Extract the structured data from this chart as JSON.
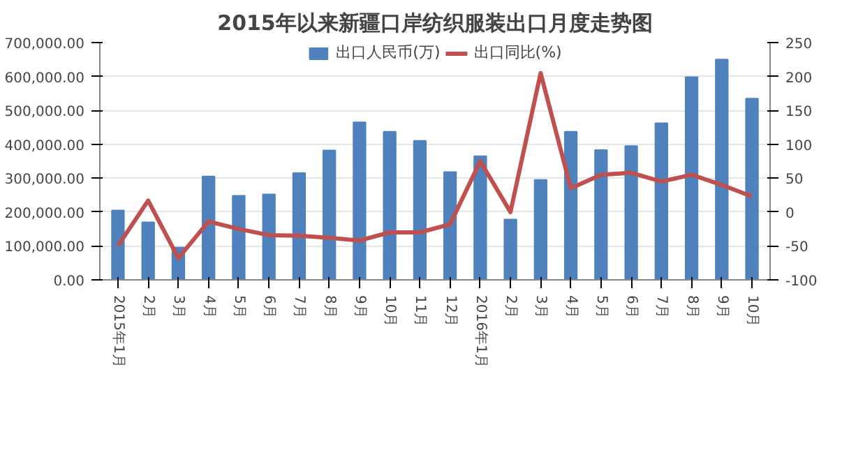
{
  "chart_data": {
    "type": "bar",
    "title": "2015年以来新疆口岸纺织服装出口月度走势图",
    "categories": [
      "2015年1月",
      "2月",
      "3月",
      "4月",
      "5月",
      "6月",
      "7月",
      "8月",
      "9月",
      "10月",
      "11月",
      "12月",
      "2016年1月",
      "2月",
      "3月",
      "4月",
      "5月",
      "6月",
      "7月",
      "8月",
      "9月",
      "10月"
    ],
    "series": [
      {
        "name": "出口人民币(万)",
        "color": "#4f81bd",
        "values": [
          205000,
          170000,
          95000,
          305000,
          248000,
          252000,
          315000,
          382000,
          465000,
          437000,
          410000,
          318000,
          365000,
          178000,
          295000,
          437000,
          383000,
          395000,
          462000,
          598000,
          650000,
          535000
        ]
      },
      {
        "name": "出口同比(%)",
        "type": "line",
        "axis": "y2",
        "color": "#c0504d",
        "values": [
          -50,
          17,
          -68,
          -14,
          -25,
          -34,
          -35,
          -38,
          -42,
          -30,
          -30,
          -18,
          75,
          0,
          205,
          35,
          55,
          58,
          45,
          55,
          40,
          23
        ]
      }
    ],
    "ylim": [
      0,
      700000
    ],
    "yticks": [
      {
        "value": 0,
        "label": "0.00"
      },
      {
        "value": 100000,
        "label": "100,000.00"
      },
      {
        "value": 200000,
        "label": "200,000.00"
      },
      {
        "value": 300000,
        "label": "300,000.00"
      },
      {
        "value": 400000,
        "label": "400,000.00"
      },
      {
        "value": 500000,
        "label": "500,000.00"
      },
      {
        "value": 600000,
        "label": "600,000.00"
      },
      {
        "value": 700000,
        "label": "700,000.00"
      }
    ],
    "y2lim": [
      -100,
      250
    ],
    "y2ticks": [
      -100,
      -50,
      0,
      50,
      100,
      150,
      200,
      250
    ],
    "grid": "y",
    "legend": "top",
    "marker": "none",
    "line_style": "solid"
  }
}
